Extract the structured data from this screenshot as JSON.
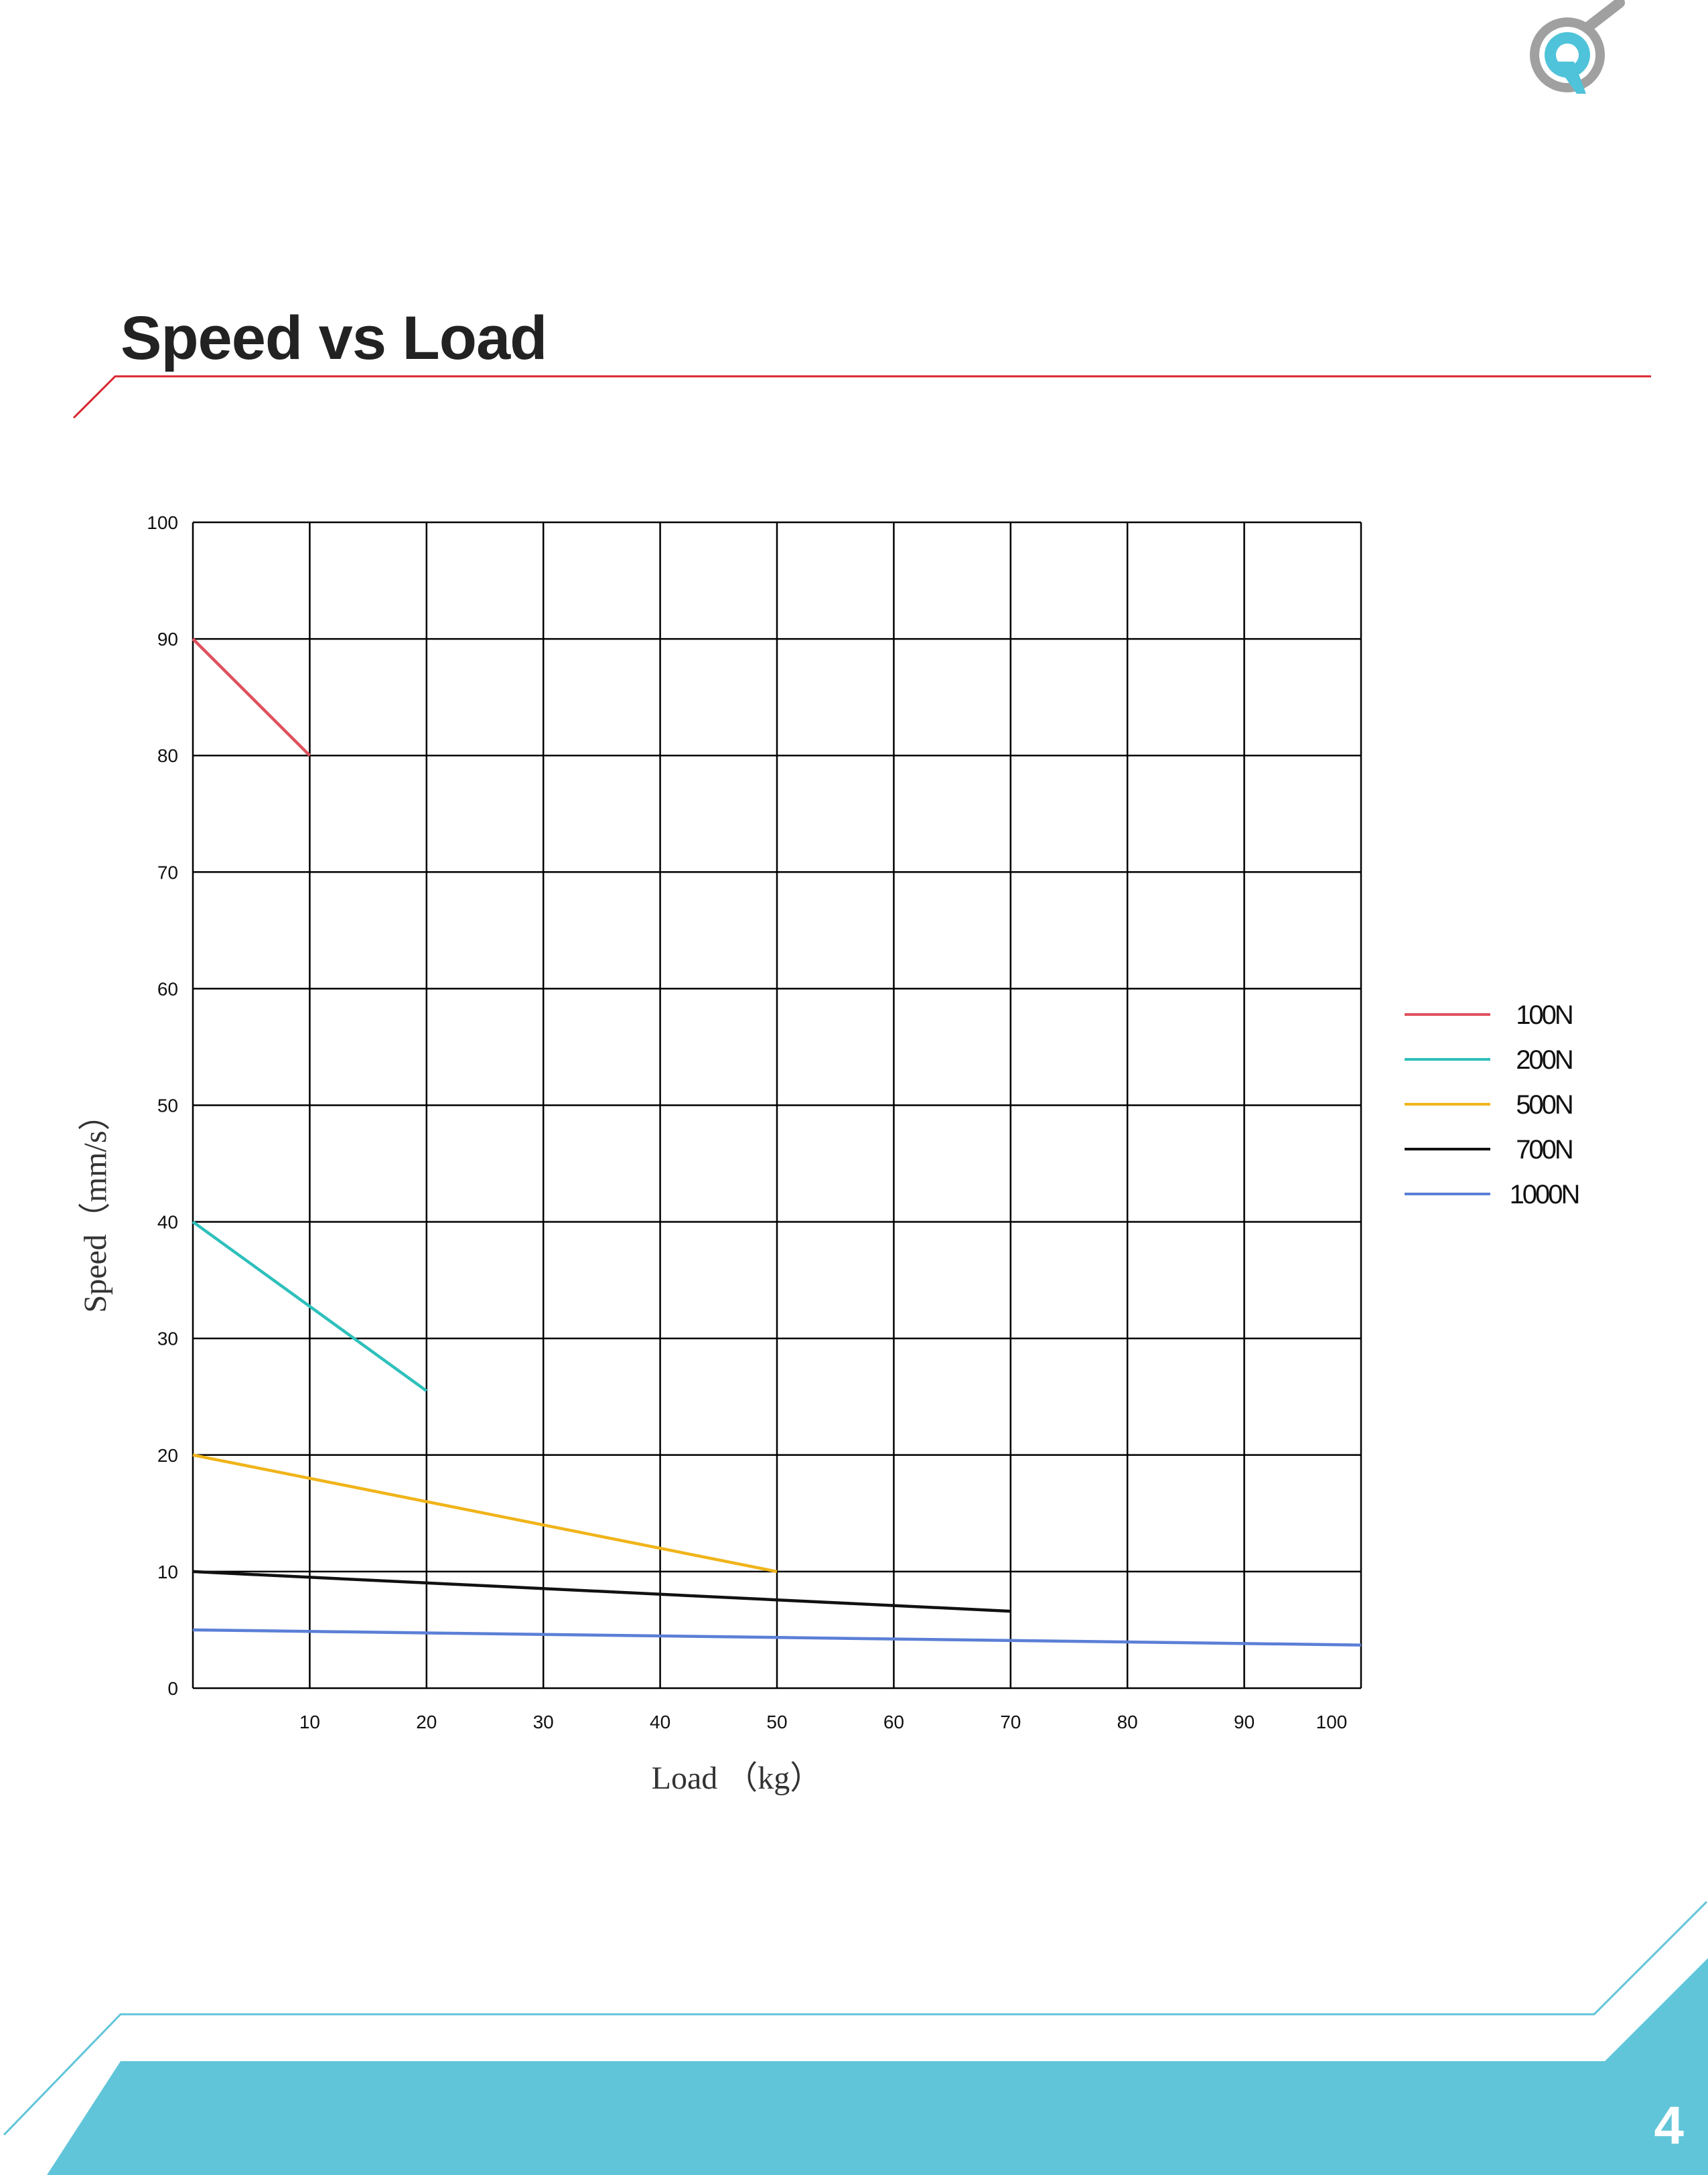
{
  "page": {
    "title": "Speed vs Load",
    "page_number": "4"
  },
  "logo": {
    "icon": "magnifier-q-logo",
    "ring_color": "#a0a0a0",
    "accent_color": "#4fc3d9"
  },
  "theme": {
    "accent": "#d9252e",
    "footer": "#61c5d9"
  },
  "chart_data": {
    "type": "line",
    "title": "",
    "xlabel": "Load （kg）",
    "ylabel": "Speed（mm/s）",
    "xlim": [
      0,
      100
    ],
    "ylim": [
      0,
      100
    ],
    "xticks": [
      "10",
      "20",
      "30",
      "40",
      "50",
      "60",
      "70",
      "80",
      "90",
      "100"
    ],
    "yticks": [
      "0",
      "10",
      "20",
      "30",
      "40",
      "50",
      "60",
      "70",
      "80",
      "90",
      "100"
    ],
    "grid": true,
    "legend_position": "right",
    "series": [
      {
        "name": "100N",
        "color": "#e0515f",
        "x": [
          0,
          10
        ],
        "y": [
          90,
          80
        ]
      },
      {
        "name": "200N",
        "color": "#2ec0bb",
        "x": [
          0,
          20
        ],
        "y": [
          40,
          25.5
        ]
      },
      {
        "name": "500N",
        "color": "#f0b41a",
        "x": [
          0,
          50
        ],
        "y": [
          20,
          10
        ]
      },
      {
        "name": "700N",
        "color": "#111111",
        "x": [
          0,
          70
        ],
        "y": [
          10,
          6.6
        ]
      },
      {
        "name": "1000N",
        "color": "#5b7fd6",
        "x": [
          0,
          100
        ],
        "y": [
          5,
          3.7
        ]
      }
    ]
  }
}
